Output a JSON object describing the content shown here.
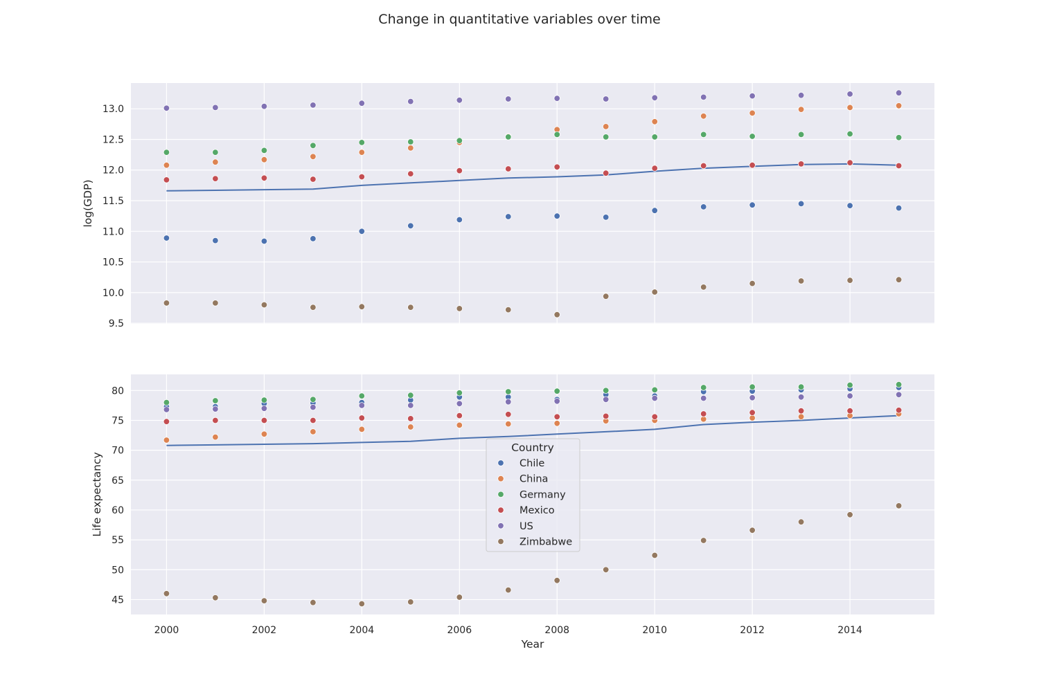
{
  "figure_title": "Change in quantitative variables over time",
  "colors": {
    "background": "#EAEAF2",
    "grid": "#FFFFFF",
    "trend_line": "#4C72B0"
  },
  "legend": {
    "title": "Country",
    "placement": "center of lower panel"
  },
  "chart_data": [
    {
      "type": "scatter",
      "title": "",
      "xlabel": "",
      "ylabel": "log(GDP)",
      "xlim": [
        1999.27,
        2015.73
      ],
      "ylim": [
        9.49,
        13.42
      ],
      "x_ticks": [
        2000,
        2002,
        2004,
        2006,
        2008,
        2010,
        2012,
        2014
      ],
      "y_ticks": [
        9.5,
        10.0,
        10.5,
        11.0,
        11.5,
        12.0,
        12.5,
        13.0
      ],
      "x_tick_labels_visible": false,
      "grid": true,
      "x": [
        2000,
        2001,
        2002,
        2003,
        2004,
        2005,
        2006,
        2007,
        2008,
        2009,
        2010,
        2011,
        2012,
        2013,
        2014,
        2015
      ],
      "series": [
        {
          "name": "Chile",
          "color": "#4C72B0",
          "values": [
            10.89,
            10.85,
            10.84,
            10.88,
            11.0,
            11.09,
            11.19,
            11.24,
            11.25,
            11.23,
            11.34,
            11.4,
            11.43,
            11.45,
            11.42,
            11.38
          ]
        },
        {
          "name": "China",
          "color": "#DD8452",
          "values": [
            12.08,
            12.13,
            12.17,
            12.22,
            12.29,
            12.36,
            12.45,
            12.55,
            12.66,
            12.71,
            12.79,
            12.88,
            12.93,
            12.99,
            13.02,
            13.05
          ]
        },
        {
          "name": "Germany",
          "color": "#55A868",
          "values": [
            12.29,
            12.29,
            12.32,
            12.4,
            12.45,
            12.46,
            12.48,
            12.54,
            12.58,
            12.54,
            12.54,
            12.58,
            12.55,
            12.58,
            12.59,
            12.53
          ]
        },
        {
          "name": "Mexico",
          "color": "#C44E52",
          "values": [
            11.84,
            11.86,
            11.87,
            11.85,
            11.89,
            11.94,
            11.99,
            12.02,
            12.05,
            11.95,
            12.03,
            12.07,
            12.08,
            12.1,
            12.12,
            12.07
          ]
        },
        {
          "name": "US",
          "color": "#8172B3",
          "values": [
            13.01,
            13.02,
            13.04,
            13.06,
            13.09,
            13.12,
            13.14,
            13.16,
            13.17,
            13.16,
            13.18,
            13.19,
            13.21,
            13.22,
            13.24,
            13.26
          ]
        },
        {
          "name": "Zimbabwe",
          "color": "#937860",
          "values": [
            9.83,
            9.83,
            9.8,
            9.76,
            9.77,
            9.76,
            9.74,
            9.72,
            9.64,
            9.94,
            10.01,
            10.09,
            10.15,
            10.19,
            10.2,
            10.21
          ]
        }
      ],
      "trend": {
        "type": "line",
        "values": [
          11.66,
          11.67,
          11.68,
          11.69,
          11.75,
          11.79,
          11.83,
          11.87,
          11.89,
          11.92,
          11.98,
          12.03,
          12.06,
          12.09,
          12.1,
          12.08
        ]
      }
    },
    {
      "type": "scatter",
      "title": "",
      "xlabel": "Year",
      "ylabel": "Life expectancy",
      "xlim": [
        1999.27,
        2015.73
      ],
      "ylim": [
        42.5,
        82.7
      ],
      "x_ticks": [
        2000,
        2002,
        2004,
        2006,
        2008,
        2010,
        2012,
        2014
      ],
      "y_ticks": [
        45,
        50,
        55,
        60,
        65,
        70,
        75,
        80
      ],
      "grid": true,
      "x": [
        2000,
        2001,
        2002,
        2003,
        2004,
        2005,
        2006,
        2007,
        2008,
        2009,
        2010,
        2011,
        2012,
        2013,
        2014,
        2015
      ],
      "series": [
        {
          "name": "Chile",
          "color": "#4C72B0",
          "values": [
            77.3,
            77.3,
            77.8,
            77.9,
            78.0,
            78.4,
            78.9,
            78.9,
            78.5,
            79.3,
            79.1,
            79.8,
            79.9,
            80.1,
            80.3,
            80.5
          ]
        },
        {
          "name": "China",
          "color": "#DD8452",
          "values": [
            71.7,
            72.2,
            72.7,
            73.1,
            73.5,
            73.9,
            74.2,
            74.4,
            74.5,
            74.9,
            75.0,
            75.2,
            75.4,
            75.6,
            75.8,
            76.1
          ]
        },
        {
          "name": "Germany",
          "color": "#55A868",
          "values": [
            78.0,
            78.3,
            78.4,
            78.5,
            79.1,
            79.2,
            79.6,
            79.8,
            79.9,
            80.0,
            80.1,
            80.5,
            80.6,
            80.6,
            80.9,
            81.0
          ]
        },
        {
          "name": "Mexico",
          "color": "#C44E52",
          "values": [
            74.8,
            75.0,
            75.0,
            75.0,
            75.4,
            75.3,
            75.8,
            76.0,
            75.6,
            75.7,
            75.6,
            76.1,
            76.3,
            76.6,
            76.6,
            76.7
          ]
        },
        {
          "name": "US",
          "color": "#8172B3",
          "values": [
            76.8,
            76.9,
            77.0,
            77.2,
            77.5,
            77.5,
            77.8,
            78.1,
            78.2,
            78.5,
            78.7,
            78.7,
            78.8,
            78.9,
            79.1,
            79.3
          ]
        },
        {
          "name": "Zimbabwe",
          "color": "#937860",
          "values": [
            46.0,
            45.3,
            44.8,
            44.5,
            44.3,
            44.6,
            45.4,
            46.6,
            48.2,
            50.0,
            52.4,
            54.9,
            56.6,
            58.0,
            59.2,
            60.7
          ]
        }
      ],
      "trend": {
        "type": "line",
        "values": [
          70.8,
          70.9,
          71.0,
          71.1,
          71.3,
          71.5,
          72.0,
          72.3,
          72.7,
          73.1,
          73.5,
          74.3,
          74.7,
          75.0,
          75.4,
          75.8
        ]
      }
    }
  ]
}
